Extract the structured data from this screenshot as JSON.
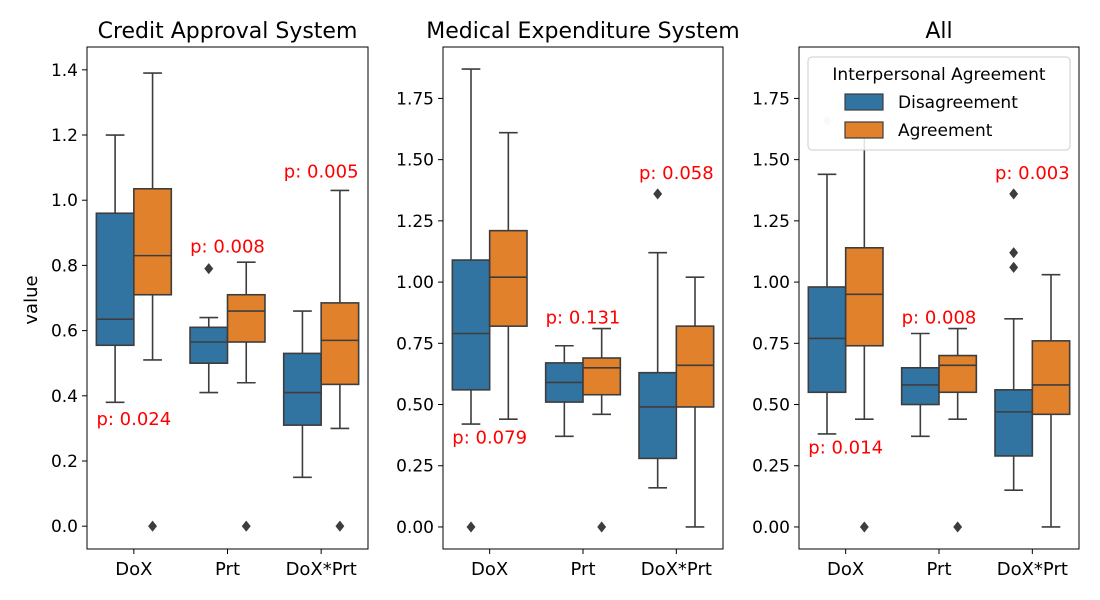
{
  "colors": {
    "disagreement": "#3274a1",
    "agreement": "#e1812c",
    "pvalue": "#ff0000",
    "line": "#3d3d3d"
  },
  "ylabel": "value",
  "legend": {
    "title": "Interpersonal Agreement",
    "entries": [
      "Disagreement",
      "Agreement"
    ],
    "placement": "top-right of third panel"
  },
  "chart_data": [
    {
      "type": "box",
      "title": "Credit Approval System",
      "ylabel": "value",
      "ylim": [
        -0.07,
        1.47
      ],
      "yticks": [
        0.0,
        0.2,
        0.4,
        0.6,
        0.8,
        1.0,
        1.2,
        1.4
      ],
      "ytick_labels": [
        "0.0",
        "0.2",
        "0.4",
        "0.6",
        "0.8",
        "1.0",
        "1.2",
        "1.4"
      ],
      "categories": [
        "DoX",
        "Prt",
        "DoX*Prt"
      ],
      "series": [
        {
          "name": "Disagreement",
          "boxes": [
            {
              "low": 0.38,
              "q1": 0.555,
              "median": 0.635,
              "q3": 0.96,
              "high": 1.2,
              "outliers": []
            },
            {
              "low": 0.41,
              "q1": 0.5,
              "median": 0.565,
              "q3": 0.61,
              "high": 0.64,
              "outliers": [
                0.79
              ]
            },
            {
              "low": 0.15,
              "q1": 0.31,
              "median": 0.41,
              "q3": 0.53,
              "high": 0.66,
              "outliers": []
            }
          ]
        },
        {
          "name": "Agreement",
          "boxes": [
            {
              "low": 0.51,
              "q1": 0.71,
              "median": 0.83,
              "q3": 1.035,
              "high": 1.39,
              "outliers": [
                0.0
              ]
            },
            {
              "low": 0.44,
              "q1": 0.565,
              "median": 0.66,
              "q3": 0.71,
              "high": 0.81,
              "outliers": [
                0.0
              ]
            },
            {
              "low": 0.3,
              "q1": 0.435,
              "median": 0.57,
              "q3": 0.685,
              "high": 1.03,
              "outliers": [
                0.0
              ]
            }
          ]
        }
      ],
      "annotations": [
        {
          "text": "p: 0.024",
          "category": 0,
          "y": 0.31
        },
        {
          "text": "p: 0.008",
          "category": 1,
          "y": 0.84
        },
        {
          "text": "p: 0.005",
          "category": 2,
          "y": 1.07
        }
      ]
    },
    {
      "type": "box",
      "title": "Medical Expenditure System",
      "ylim": [
        -0.09,
        1.96
      ],
      "yticks": [
        0.0,
        0.25,
        0.5,
        0.75,
        1.0,
        1.25,
        1.5,
        1.75
      ],
      "ytick_labels": [
        "0.00",
        "0.25",
        "0.50",
        "0.75",
        "1.00",
        "1.25",
        "1.50",
        "1.75"
      ],
      "categories": [
        "DoX",
        "Prt",
        "DoX*Prt"
      ],
      "series": [
        {
          "name": "Disagreement",
          "boxes": [
            {
              "low": 0.42,
              "q1": 0.56,
              "median": 0.79,
              "q3": 1.09,
              "high": 1.87,
              "outliers": [
                0.0
              ]
            },
            {
              "low": 0.37,
              "q1": 0.51,
              "median": 0.59,
              "q3": 0.67,
              "high": 0.74,
              "outliers": []
            },
            {
              "low": 0.16,
              "q1": 0.28,
              "median": 0.49,
              "q3": 0.63,
              "high": 1.12,
              "outliers": [
                1.36
              ]
            }
          ]
        },
        {
          "name": "Agreement",
          "boxes": [
            {
              "low": 0.44,
              "q1": 0.82,
              "median": 1.02,
              "q3": 1.21,
              "high": 1.61,
              "outliers": []
            },
            {
              "low": 0.46,
              "q1": 0.54,
              "median": 0.65,
              "q3": 0.69,
              "high": 0.81,
              "outliers": [
                0.0
              ]
            },
            {
              "low": 0.0,
              "q1": 0.49,
              "median": 0.66,
              "q3": 0.82,
              "high": 1.02,
              "outliers": []
            }
          ]
        }
      ],
      "annotations": [
        {
          "text": "p: 0.079",
          "category": 0,
          "y": 0.34
        },
        {
          "text": "p: 0.131",
          "category": 1,
          "y": 0.83
        },
        {
          "text": "p: 0.058",
          "category": 2,
          "y": 1.42
        }
      ]
    },
    {
      "type": "box",
      "title": "All",
      "ylim": [
        -0.09,
        1.96
      ],
      "yticks": [
        0.0,
        0.25,
        0.5,
        0.75,
        1.0,
        1.25,
        1.5,
        1.75
      ],
      "ytick_labels": [
        "0.00",
        "0.25",
        "0.50",
        "0.75",
        "1.00",
        "1.25",
        "1.50",
        "1.75"
      ],
      "categories": [
        "DoX",
        "Prt",
        "DoX*Prt"
      ],
      "series": [
        {
          "name": "Disagreement",
          "boxes": [
            {
              "low": 0.38,
              "q1": 0.55,
              "median": 0.77,
              "q3": 0.98,
              "high": 1.44,
              "outliers": [
                1.66
              ]
            },
            {
              "low": 0.37,
              "q1": 0.5,
              "median": 0.58,
              "q3": 0.65,
              "high": 0.79,
              "outliers": []
            },
            {
              "low": 0.15,
              "q1": 0.29,
              "median": 0.47,
              "q3": 0.56,
              "high": 0.85,
              "outliers": [
                1.06,
                1.12,
                1.36
              ]
            }
          ]
        },
        {
          "name": "Agreement",
          "boxes": [
            {
              "low": 0.44,
              "q1": 0.74,
              "median": 0.95,
              "q3": 1.14,
              "high": 1.62,
              "outliers": [
                0.0
              ]
            },
            {
              "low": 0.44,
              "q1": 0.55,
              "median": 0.66,
              "q3": 0.7,
              "high": 0.81,
              "outliers": [
                0.0
              ]
            },
            {
              "low": 0.0,
              "q1": 0.46,
              "median": 0.58,
              "q3": 0.76,
              "high": 1.03,
              "outliers": []
            }
          ]
        }
      ],
      "annotations": [
        {
          "text": "p: 0.014",
          "category": 0,
          "y": 0.3
        },
        {
          "text": "p: 0.008",
          "category": 1,
          "y": 0.83
        },
        {
          "text": "p: 0.003",
          "category": 2,
          "y": 1.42
        }
      ]
    }
  ]
}
